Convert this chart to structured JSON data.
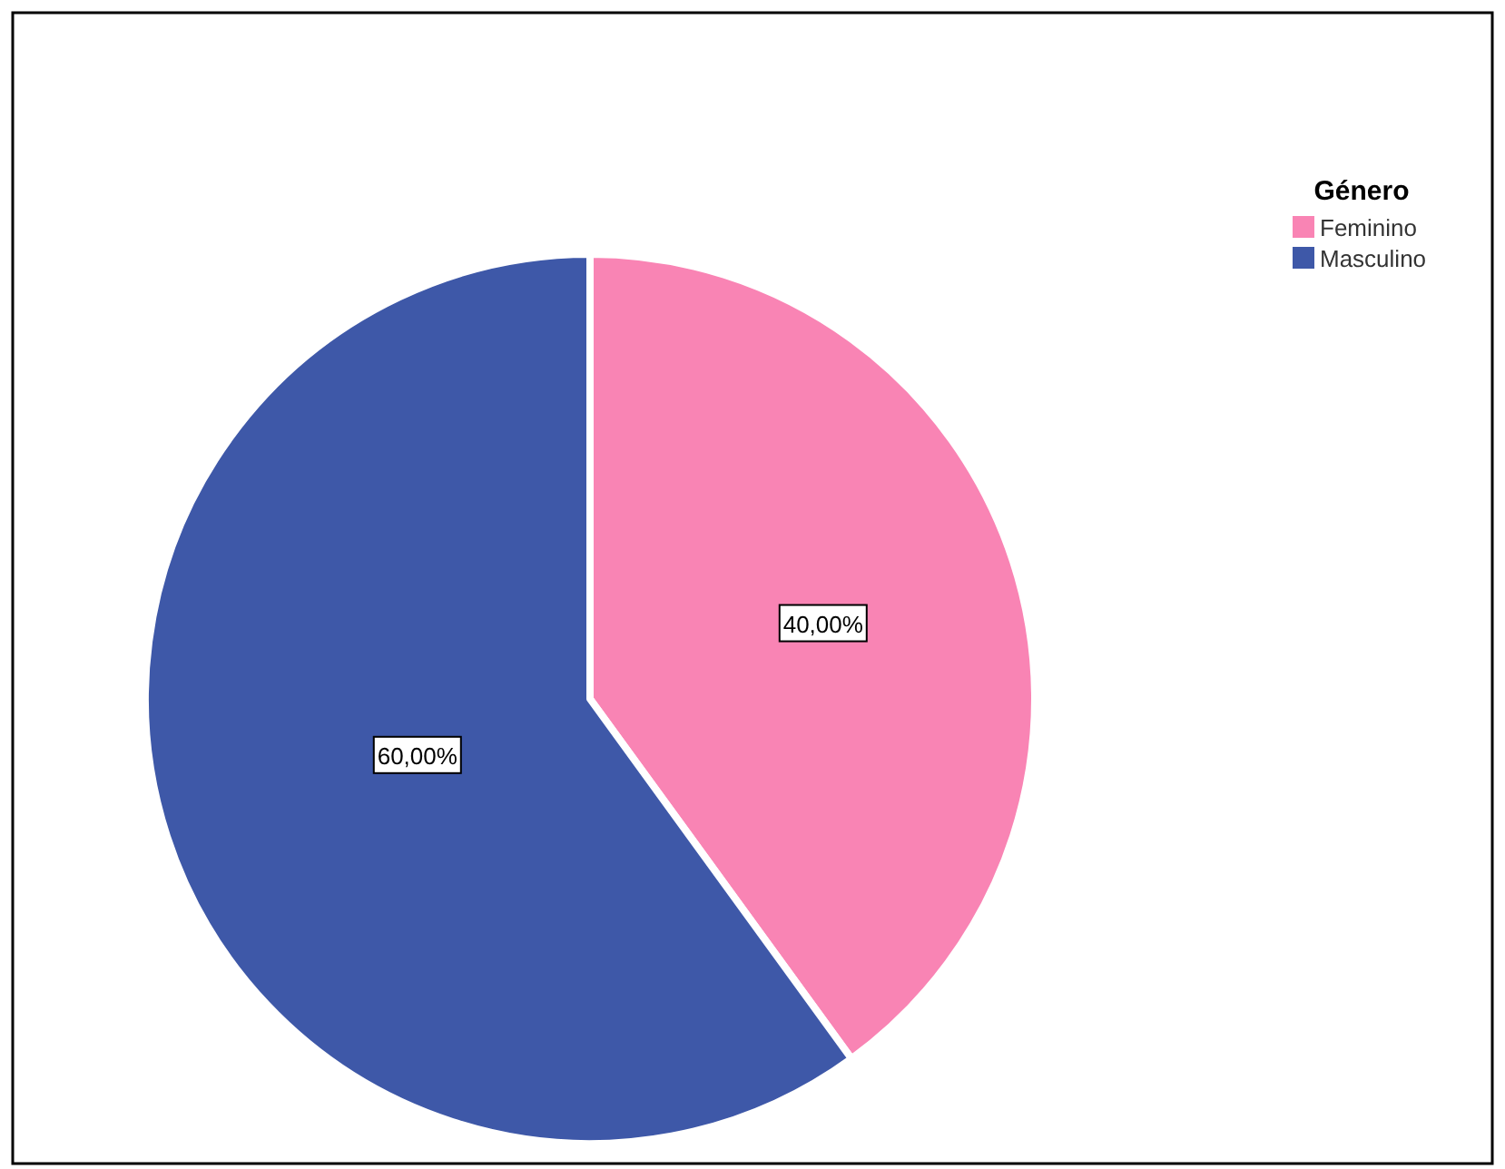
{
  "chart_data": {
    "type": "pie",
    "legend_title": "Género",
    "categories": [
      "Feminino",
      "Masculino"
    ],
    "values": [
      40,
      60
    ],
    "colors": [
      "#f984b4",
      "#3e58a8"
    ],
    "value_labels": [
      "40,00%",
      "60,00%"
    ],
    "legend": "top right"
  }
}
